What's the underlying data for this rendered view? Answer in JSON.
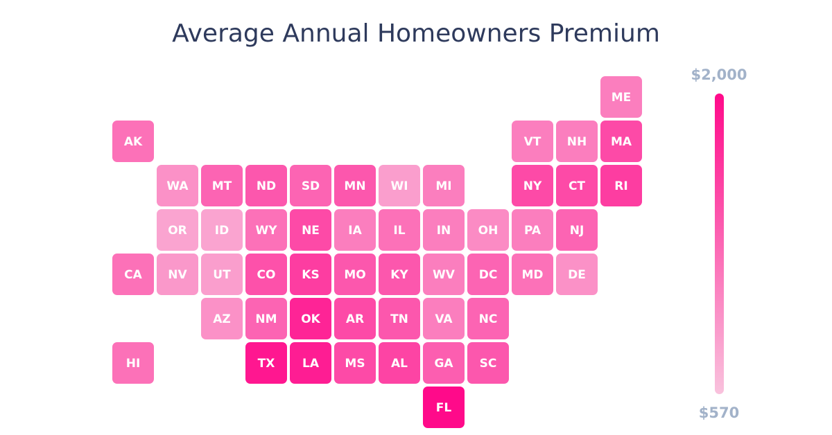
{
  "chart_data": {
    "type": "tile-map",
    "title": "Average Annual Homeowners Premium",
    "categories": [
      "ME",
      "AK",
      "VT",
      "NH",
      "MA",
      "WA",
      "MT",
      "ND",
      "SD",
      "MN",
      "WI",
      "MI",
      "NY",
      "CT",
      "RI",
      "OR",
      "ID",
      "WY",
      "NE",
      "IA",
      "IL",
      "IN",
      "OH",
      "PA",
      "NJ",
      "CA",
      "NV",
      "UT",
      "CO",
      "KS",
      "MO",
      "KY",
      "WV",
      "DC",
      "MD",
      "DE",
      "AZ",
      "NM",
      "OK",
      "AR",
      "TN",
      "VA",
      "NC",
      "HI",
      "TX",
      "LA",
      "MS",
      "AL",
      "GA",
      "SC",
      "FL"
    ],
    "values": [
      1100,
      1200,
      1100,
      1100,
      1500,
      950,
      1300,
      1400,
      1300,
      1400,
      850,
      1100,
      1500,
      1500,
      1600,
      800,
      800,
      1200,
      1500,
      1100,
      1200,
      1100,
      1000,
      1100,
      1300,
      1200,
      900,
      850,
      1450,
      1600,
      1400,
      1400,
      1100,
      1300,
      1200,
      950,
      950,
      1300,
      1800,
      1500,
      1400,
      1100,
      1300,
      1200,
      1900,
      1850,
      1500,
      1550,
      1350,
      1400,
      2000
    ],
    "color_low": "#f9c2dd",
    "color_high": "#ff0a8a",
    "vlim": [
      570,
      2000
    ],
    "legend_ticks": [
      {
        "value": 2000,
        "label": "$2,000"
      },
      {
        "value": 570,
        "label": "$570"
      }
    ]
  }
}
